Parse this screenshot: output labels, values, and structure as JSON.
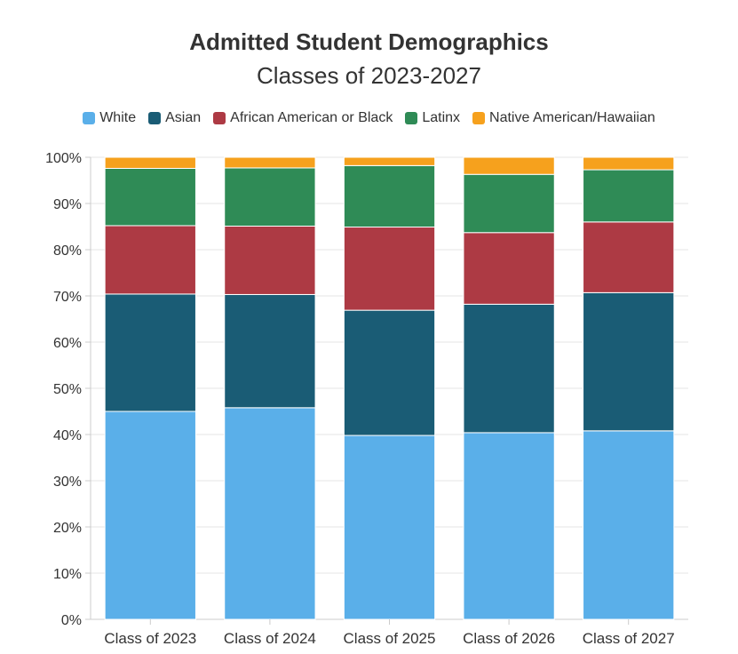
{
  "chart_data": {
    "type": "bar",
    "stacked": true,
    "title": "Admitted Student Demographics",
    "subtitle": "Classes of 2023-2027",
    "categories": [
      "Class of 2023",
      "Class of 2024",
      "Class of 2025",
      "Class of 2026",
      "Class of 2027"
    ],
    "series": [
      {
        "name": "White",
        "color": "#5aafe9",
        "values": [
          45.0,
          45.8,
          39.8,
          40.4,
          40.8
        ]
      },
      {
        "name": "Asian",
        "color": "#1a5c75",
        "values": [
          25.4,
          24.5,
          27.1,
          27.8,
          29.9
        ]
      },
      {
        "name": "African American or Black",
        "color": "#ad3a44",
        "values": [
          14.8,
          14.8,
          18.0,
          15.5,
          15.3
        ]
      },
      {
        "name": "Latinx",
        "color": "#2f8b56",
        "values": [
          12.4,
          12.6,
          13.3,
          12.6,
          11.3
        ]
      },
      {
        "name": "Native American/Hawaiian",
        "color": "#f6a11d",
        "values": [
          2.4,
          2.3,
          1.8,
          3.7,
          2.7
        ]
      }
    ],
    "ylim": [
      0,
      100
    ],
    "yticks": [
      "0%",
      "10%",
      "20%",
      "30%",
      "40%",
      "50%",
      "60%",
      "70%",
      "80%",
      "90%",
      "100%"
    ],
    "legend_position": "top",
    "grid": true
  }
}
